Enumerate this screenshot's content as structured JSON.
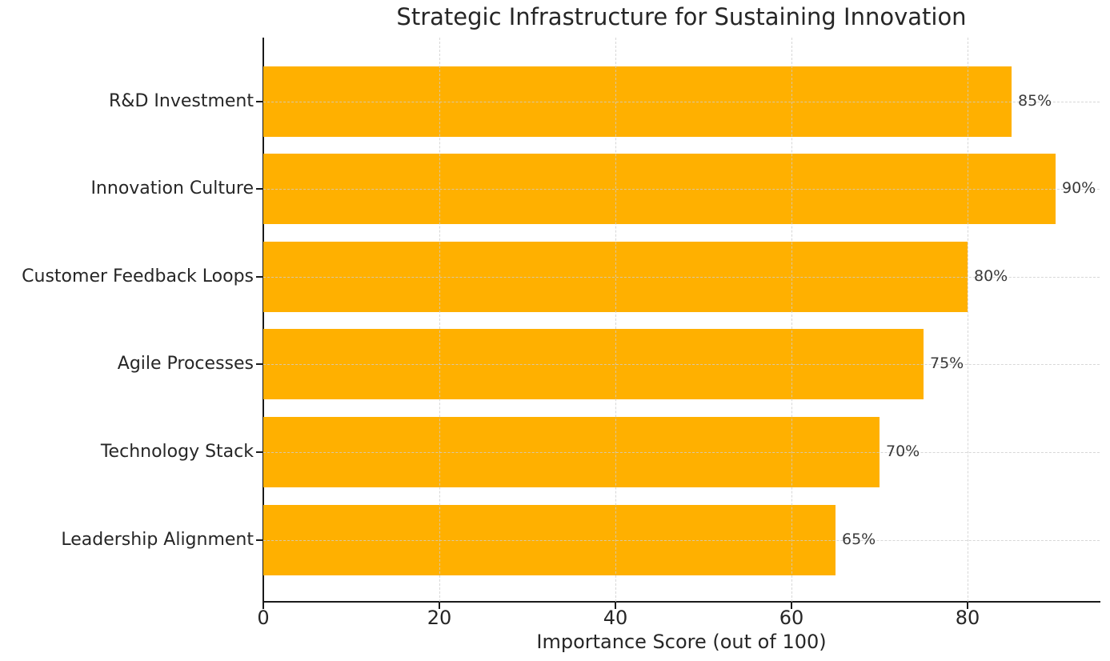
{
  "chart_data": {
    "type": "bar",
    "orientation": "horizontal",
    "title": "Strategic Infrastructure for Sustaining Innovation",
    "categories": [
      "R&D Investment",
      "Innovation Culture",
      "Customer Feedback Loops",
      "Agile Processes",
      "Technology Stack",
      "Leadership Alignment"
    ],
    "values": [
      85,
      90,
      80,
      75,
      70,
      65
    ],
    "bar_value_labels": [
      "85%",
      "90%",
      "80%",
      "75%",
      "70%",
      "65%"
    ],
    "xlabel": "Importance Score (out of 100)",
    "ylabel": "",
    "xlim": [
      0,
      95
    ],
    "xticks": [
      0,
      20,
      40,
      60,
      80
    ],
    "grid": {
      "style": "dashed",
      "axes": "both",
      "drawn_above_bars": true
    },
    "legend": "none",
    "colors": {
      "bar": "#FFB000",
      "grid": "#cdcdcd",
      "spine": "#1a1a1a",
      "text": "#262626",
      "value_label": "#3a3a3a",
      "background": "#ffffff"
    }
  }
}
